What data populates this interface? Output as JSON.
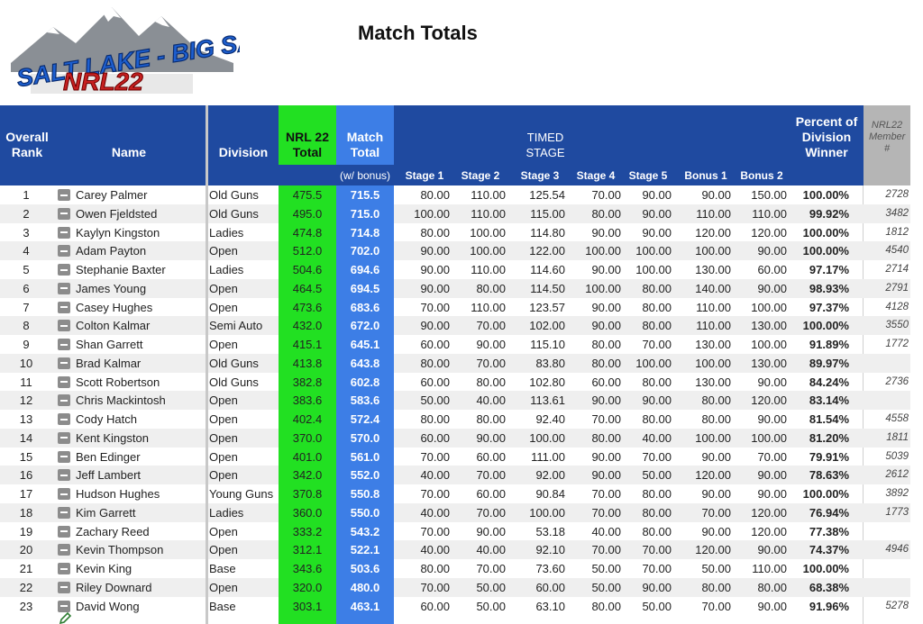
{
  "logo": {
    "line1": "SALT LAKE - BIG SALTY",
    "line2": "NRL22"
  },
  "title": "Match Totals",
  "headers": {
    "rank": "Overall Rank",
    "name": "Name",
    "division": "Division",
    "nrl_total": "NRL 22 Total",
    "match_total": "Match Total",
    "with_bonus": "(w/ bonus)",
    "timed_stage": "TIMED STAGE",
    "stage1": "Stage 1",
    "stage2": "Stage 2",
    "stage3": "Stage 3",
    "stage4": "Stage 4",
    "stage5": "Stage 5",
    "bonus1": "Bonus 1",
    "bonus2": "Bonus 2",
    "percent": "Percent of Division Winner",
    "member": "NRL22 Member #"
  },
  "rows": [
    {
      "rank": "1",
      "name": "Carey Palmer",
      "division": "Old Guns",
      "nrl": "475.5",
      "match": "715.5",
      "s1": "80.00",
      "s2": "110.00",
      "s3": "125.54",
      "s4": "70.00",
      "s5": "90.00",
      "b1": "90.00",
      "b2": "150.00",
      "pct": "100.00%",
      "mem": "2728"
    },
    {
      "rank": "2",
      "name": "Owen Fjeldsted",
      "division": "Old Guns",
      "nrl": "495.0",
      "match": "715.0",
      "s1": "100.00",
      "s2": "110.00",
      "s3": "115.00",
      "s4": "80.00",
      "s5": "90.00",
      "b1": "110.00",
      "b2": "110.00",
      "pct": "99.92%",
      "mem": "3482"
    },
    {
      "rank": "3",
      "name": "Kaylyn Kingston",
      "division": "Ladies",
      "nrl": "474.8",
      "match": "714.8",
      "s1": "80.00",
      "s2": "100.00",
      "s3": "114.80",
      "s4": "90.00",
      "s5": "90.00",
      "b1": "120.00",
      "b2": "120.00",
      "pct": "100.00%",
      "mem": "1812"
    },
    {
      "rank": "4",
      "name": "Adam Payton",
      "division": "Open",
      "nrl": "512.0",
      "match": "702.0",
      "s1": "90.00",
      "s2": "100.00",
      "s3": "122.00",
      "s4": "100.00",
      "s5": "100.00",
      "b1": "100.00",
      "b2": "90.00",
      "pct": "100.00%",
      "mem": "4540"
    },
    {
      "rank": "5",
      "name": "Stephanie Baxter",
      "division": "Ladies",
      "nrl": "504.6",
      "match": "694.6",
      "s1": "90.00",
      "s2": "110.00",
      "s3": "114.60",
      "s4": "90.00",
      "s5": "100.00",
      "b1": "130.00",
      "b2": "60.00",
      "pct": "97.17%",
      "mem": "2714"
    },
    {
      "rank": "6",
      "name": "James Young",
      "division": "Open",
      "nrl": "464.5",
      "match": "694.5",
      "s1": "90.00",
      "s2": "80.00",
      "s3": "114.50",
      "s4": "100.00",
      "s5": "80.00",
      "b1": "140.00",
      "b2": "90.00",
      "pct": "98.93%",
      "mem": "2791"
    },
    {
      "rank": "7",
      "name": "Casey Hughes",
      "division": "Open",
      "nrl": "473.6",
      "match": "683.6",
      "s1": "70.00",
      "s2": "110.00",
      "s3": "123.57",
      "s4": "90.00",
      "s5": "80.00",
      "b1": "110.00",
      "b2": "100.00",
      "pct": "97.37%",
      "mem": "4128"
    },
    {
      "rank": "8",
      "name": "Colton Kalmar",
      "division": "Semi Auto",
      "nrl": "432.0",
      "match": "672.0",
      "s1": "90.00",
      "s2": "70.00",
      "s3": "102.00",
      "s4": "90.00",
      "s5": "80.00",
      "b1": "110.00",
      "b2": "130.00",
      "pct": "100.00%",
      "mem": "3550"
    },
    {
      "rank": "9",
      "name": "Shan Garrett",
      "division": "Open",
      "nrl": "415.1",
      "match": "645.1",
      "s1": "60.00",
      "s2": "90.00",
      "s3": "115.10",
      "s4": "80.00",
      "s5": "70.00",
      "b1": "130.00",
      "b2": "100.00",
      "pct": "91.89%",
      "mem": "1772"
    },
    {
      "rank": "10",
      "name": "Brad Kalmar",
      "division": "Old Guns",
      "nrl": "413.8",
      "match": "643.8",
      "s1": "80.00",
      "s2": "70.00",
      "s3": "83.80",
      "s4": "80.00",
      "s5": "100.00",
      "b1": "100.00",
      "b2": "130.00",
      "pct": "89.97%",
      "mem": ""
    },
    {
      "rank": "11",
      "name": "Scott Robertson",
      "division": "Old Guns",
      "nrl": "382.8",
      "match": "602.8",
      "s1": "60.00",
      "s2": "80.00",
      "s3": "102.80",
      "s4": "60.00",
      "s5": "80.00",
      "b1": "130.00",
      "b2": "90.00",
      "pct": "84.24%",
      "mem": "2736"
    },
    {
      "rank": "12",
      "name": "Chris Mackintosh",
      "division": "Open",
      "nrl": "383.6",
      "match": "583.6",
      "s1": "50.00",
      "s2": "40.00",
      "s3": "113.61",
      "s4": "90.00",
      "s5": "90.00",
      "b1": "80.00",
      "b2": "120.00",
      "pct": "83.14%",
      "mem": ""
    },
    {
      "rank": "13",
      "name": "Cody Hatch",
      "division": "Open",
      "nrl": "402.4",
      "match": "572.4",
      "s1": "80.00",
      "s2": "80.00",
      "s3": "92.40",
      "s4": "70.00",
      "s5": "80.00",
      "b1": "80.00",
      "b2": "90.00",
      "pct": "81.54%",
      "mem": "4558"
    },
    {
      "rank": "14",
      "name": "Kent Kingston",
      "division": "Open",
      "nrl": "370.0",
      "match": "570.0",
      "s1": "60.00",
      "s2": "90.00",
      "s3": "100.00",
      "s4": "80.00",
      "s5": "40.00",
      "b1": "100.00",
      "b2": "100.00",
      "pct": "81.20%",
      "mem": "1811"
    },
    {
      "rank": "15",
      "name": "Ben Edinger",
      "division": "Open",
      "nrl": "401.0",
      "match": "561.0",
      "s1": "70.00",
      "s2": "60.00",
      "s3": "111.00",
      "s4": "90.00",
      "s5": "70.00",
      "b1": "90.00",
      "b2": "70.00",
      "pct": "79.91%",
      "mem": "5039"
    },
    {
      "rank": "16",
      "name": "Jeff Lambert",
      "division": "Open",
      "nrl": "342.0",
      "match": "552.0",
      "s1": "40.00",
      "s2": "70.00",
      "s3": "92.00",
      "s4": "90.00",
      "s5": "50.00",
      "b1": "120.00",
      "b2": "90.00",
      "pct": "78.63%",
      "mem": "2612"
    },
    {
      "rank": "17",
      "name": "Hudson Hughes",
      "division": "Young Guns",
      "nrl": "370.8",
      "match": "550.8",
      "s1": "70.00",
      "s2": "60.00",
      "s3": "90.84",
      "s4": "70.00",
      "s5": "80.00",
      "b1": "90.00",
      "b2": "90.00",
      "pct": "100.00%",
      "mem": "3892"
    },
    {
      "rank": "18",
      "name": "Kim Garrett",
      "division": "Ladies",
      "nrl": "360.0",
      "match": "550.0",
      "s1": "40.00",
      "s2": "70.00",
      "s3": "100.00",
      "s4": "70.00",
      "s5": "80.00",
      "b1": "70.00",
      "b2": "120.00",
      "pct": "76.94%",
      "mem": "1773"
    },
    {
      "rank": "19",
      "name": "Zachary Reed",
      "division": "Open",
      "nrl": "333.2",
      "match": "543.2",
      "s1": "70.00",
      "s2": "90.00",
      "s3": "53.18",
      "s4": "40.00",
      "s5": "80.00",
      "b1": "90.00",
      "b2": "120.00",
      "pct": "77.38%",
      "mem": ""
    },
    {
      "rank": "20",
      "name": "Kevin Thompson",
      "division": "Open",
      "nrl": "312.1",
      "match": "522.1",
      "s1": "40.00",
      "s2": "40.00",
      "s3": "92.10",
      "s4": "70.00",
      "s5": "70.00",
      "b1": "120.00",
      "b2": "90.00",
      "pct": "74.37%",
      "mem": "4946"
    },
    {
      "rank": "21",
      "name": "Kevin King",
      "division": "Base",
      "nrl": "343.6",
      "match": "503.6",
      "s1": "80.00",
      "s2": "70.00",
      "s3": "73.60",
      "s4": "50.00",
      "s5": "70.00",
      "b1": "50.00",
      "b2": "110.00",
      "pct": "100.00%",
      "mem": ""
    },
    {
      "rank": "22",
      "name": "Riley Downard",
      "division": "Open",
      "nrl": "320.0",
      "match": "480.0",
      "s1": "70.00",
      "s2": "50.00",
      "s3": "60.00",
      "s4": "50.00",
      "s5": "90.00",
      "b1": "80.00",
      "b2": "80.00",
      "pct": "68.38%",
      "mem": ""
    },
    {
      "rank": "23",
      "name": "David Wong",
      "division": "Base",
      "nrl": "303.1",
      "match": "463.1",
      "s1": "60.00",
      "s2": "50.00",
      "s3": "63.10",
      "s4": "80.00",
      "s5": "50.00",
      "b1": "70.00",
      "b2": "90.00",
      "pct": "91.96%",
      "mem": "5278"
    }
  ]
}
